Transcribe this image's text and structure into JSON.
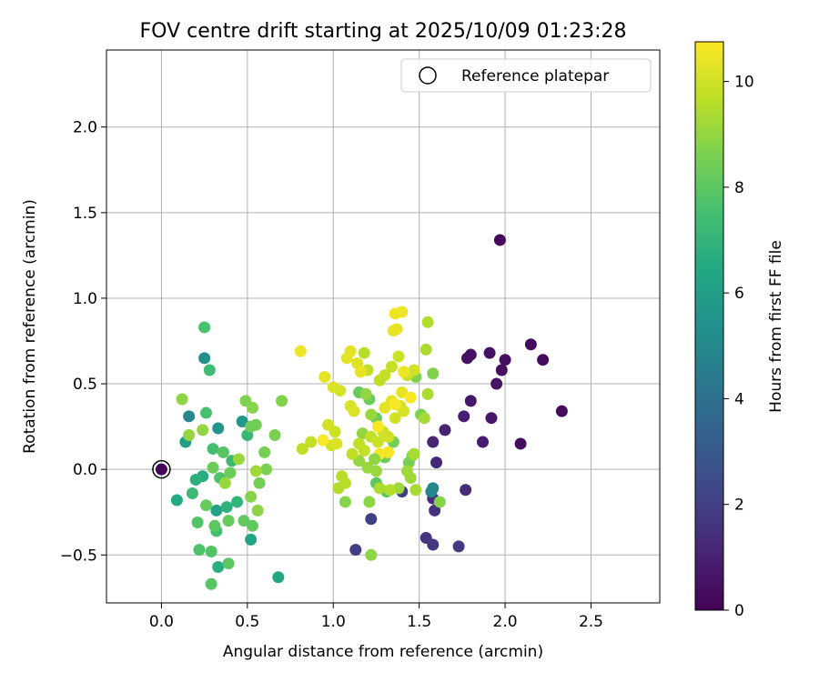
{
  "chart_data": {
    "type": "scatter",
    "title": "FOV centre drift starting at 2025/10/09 01:23:28",
    "xlabel": "Angular distance from reference (arcmin)",
    "ylabel": "Rotation from reference (arcmin)",
    "xlim": [
      -0.32,
      2.9
    ],
    "ylim": [
      -0.78,
      2.45
    ],
    "xticks": [
      0.0,
      0.5,
      1.0,
      1.5,
      2.0,
      2.5
    ],
    "xtick_labels": [
      "0.0",
      "0.5",
      "1.0",
      "1.5",
      "2.0",
      "2.5"
    ],
    "yticks": [
      -0.5,
      0.0,
      0.5,
      1.0,
      1.5,
      2.0
    ],
    "ytick_labels": [
      "−0.5",
      "0.0",
      "0.5",
      "1.0",
      "1.5",
      "2.0"
    ],
    "grid": true,
    "legend": {
      "position": "upper-right",
      "entries": [
        "Reference platepar"
      ]
    },
    "reference_point": {
      "x": 0.0,
      "y": 0.0,
      "label": "Reference platepar"
    },
    "colorbar": {
      "label": "Hours from first FF file",
      "range": [
        0,
        10.75
      ],
      "ticks": [
        0,
        2,
        4,
        6,
        8,
        10
      ],
      "tick_labels": [
        "0",
        "2",
        "4",
        "6",
        "8",
        "10"
      ],
      "colormap": "viridis"
    },
    "points": [
      [
        0.0,
        0.0,
        0.1
      ],
      [
        1.97,
        1.34,
        0.2
      ],
      [
        2.15,
        0.73,
        0.3
      ],
      [
        2.22,
        0.64,
        0.3
      ],
      [
        2.33,
        0.34,
        0.3
      ],
      [
        2.09,
        0.15,
        0.3
      ],
      [
        2.0,
        0.64,
        0.4
      ],
      [
        1.98,
        0.58,
        0.4
      ],
      [
        1.91,
        0.68,
        0.5
      ],
      [
        1.8,
        0.67,
        0.5
      ],
      [
        1.78,
        0.65,
        0.5
      ],
      [
        1.95,
        0.5,
        0.6
      ],
      [
        1.8,
        0.4,
        0.7
      ],
      [
        1.92,
        0.3,
        0.7
      ],
      [
        1.87,
        0.16,
        0.8
      ],
      [
        1.76,
        0.31,
        0.9
      ],
      [
        1.65,
        0.23,
        1.0
      ],
      [
        1.58,
        0.16,
        1.1
      ],
      [
        1.6,
        0.04,
        1.2
      ],
      [
        1.77,
        -0.12,
        1.3
      ],
      [
        1.58,
        -0.17,
        1.4
      ],
      [
        1.59,
        -0.24,
        1.5
      ],
      [
        1.54,
        -0.4,
        1.6
      ],
      [
        1.58,
        -0.44,
        1.7
      ],
      [
        1.73,
        -0.45,
        1.8
      ],
      [
        1.13,
        -0.47,
        1.9
      ],
      [
        1.22,
        -0.29,
        2.0
      ],
      [
        1.4,
        -0.13,
        2.1
      ],
      [
        1.58,
        -0.11,
        4.8
      ],
      [
        1.57,
        -0.13,
        4.9
      ],
      [
        0.16,
        0.31,
        5.0
      ],
      [
        0.25,
        0.65,
        5.3
      ],
      [
        0.33,
        0.24,
        5.5
      ],
      [
        0.47,
        0.28,
        5.7
      ],
      [
        0.14,
        0.16,
        6.0
      ],
      [
        0.32,
        -0.24,
        6.2
      ],
      [
        0.52,
        -0.41,
        6.3
      ],
      [
        0.68,
        -0.63,
        6.4
      ],
      [
        0.09,
        -0.18,
        6.5
      ],
      [
        0.24,
        -0.04,
        6.6
      ],
      [
        0.33,
        -0.57,
        6.7
      ],
      [
        0.2,
        -0.06,
        6.8
      ],
      [
        0.38,
        -0.22,
        6.9
      ],
      [
        0.44,
        -0.19,
        7.0
      ],
      [
        0.5,
        0.2,
        7.1
      ],
      [
        0.41,
        0.05,
        7.2
      ],
      [
        0.18,
        -0.14,
        7.3
      ],
      [
        0.28,
        0.58,
        7.4
      ],
      [
        0.3,
        0.12,
        7.5
      ],
      [
        0.32,
        -0.36,
        7.5
      ],
      [
        0.26,
        0.33,
        7.6
      ],
      [
        0.25,
        0.83,
        7.6
      ],
      [
        0.34,
        -0.05,
        7.7
      ],
      [
        0.22,
        -0.47,
        7.7
      ],
      [
        0.29,
        -0.48,
        7.8
      ],
      [
        0.21,
        -0.31,
        7.8
      ],
      [
        0.29,
        -0.67,
        7.9
      ],
      [
        0.36,
        0.1,
        7.9
      ],
      [
        0.31,
        -0.33,
        8.0
      ],
      [
        0.39,
        -0.55,
        8.0
      ],
      [
        0.48,
        -0.3,
        8.1
      ],
      [
        0.53,
        -0.33,
        8.1
      ],
      [
        0.26,
        -0.21,
        8.2
      ],
      [
        0.39,
        -0.3,
        8.2
      ],
      [
        0.3,
        0.01,
        8.3
      ],
      [
        0.4,
        -0.02,
        8.3
      ],
      [
        0.52,
        0.25,
        8.4
      ],
      [
        0.55,
        0.26,
        8.4
      ],
      [
        0.57,
        -0.08,
        8.5
      ],
      [
        0.6,
        0.1,
        8.5
      ],
      [
        0.61,
        0.0,
        8.6
      ],
      [
        0.66,
        0.2,
        8.6
      ],
      [
        0.7,
        0.4,
        8.7
      ],
      [
        0.49,
        0.4,
        8.7
      ],
      [
        0.53,
        0.36,
        8.8
      ],
      [
        0.52,
        -0.16,
        8.8
      ],
      [
        0.56,
        -0.24,
        8.9
      ],
      [
        0.12,
        0.41,
        8.9
      ],
      [
        0.16,
        0.2,
        9.0
      ],
      [
        0.24,
        0.23,
        9.0
      ],
      [
        0.37,
        -0.08,
        9.1
      ],
      [
        0.45,
        0.06,
        9.1
      ],
      [
        0.55,
        -0.01,
        9.2
      ],
      [
        1.25,
        -0.08,
        8.0
      ],
      [
        1.31,
        -0.13,
        8.0
      ],
      [
        1.15,
        0.45,
        8.2
      ],
      [
        1.21,
        0.41,
        8.3
      ],
      [
        1.25,
        0.3,
        8.3
      ],
      [
        1.3,
        0.07,
        8.4
      ],
      [
        1.35,
        0.16,
        8.5
      ],
      [
        1.44,
        0.04,
        8.5
      ],
      [
        1.46,
        0.08,
        8.6
      ],
      [
        1.51,
        0.32,
        8.6
      ],
      [
        1.48,
        0.54,
        8.7
      ],
      [
        1.58,
        0.56,
        8.7
      ],
      [
        1.62,
        -0.19,
        8.8
      ],
      [
        1.07,
        -0.19,
        8.8
      ],
      [
        1.21,
        -0.19,
        8.9
      ],
      [
        1.22,
        -0.5,
        8.9
      ],
      [
        1.15,
        0.05,
        9.0
      ],
      [
        1.17,
        0.21,
        9.0
      ],
      [
        1.2,
        0.01,
        9.1
      ],
      [
        1.25,
        -0.01,
        9.1
      ],
      [
        1.38,
        -0.11,
        9.2
      ],
      [
        1.43,
        -0.01,
        9.2
      ],
      [
        1.48,
        -0.12,
        9.3
      ],
      [
        1.53,
        0.3,
        9.3
      ],
      [
        1.55,
        0.44,
        9.4
      ],
      [
        1.54,
        0.7,
        9.4
      ],
      [
        1.55,
        0.86,
        9.5
      ],
      [
        1.03,
        -0.11,
        9.5
      ],
      [
        1.07,
        -0.08,
        9.6
      ],
      [
        1.05,
        -0.04,
        9.6
      ],
      [
        1.11,
        0.09,
        9.7
      ],
      [
        1.15,
        0.15,
        9.7
      ],
      [
        1.18,
        0.11,
        9.8
      ],
      [
        1.22,
        0.19,
        9.8
      ],
      [
        1.26,
        0.16,
        9.9
      ],
      [
        1.29,
        0.22,
        9.9
      ],
      [
        1.32,
        0.19,
        10.0
      ],
      [
        1.36,
        0.3,
        10.0
      ],
      [
        1.39,
        0.37,
        10.1
      ],
      [
        1.41,
        0.34,
        10.1
      ],
      [
        1.18,
        0.68,
        9.6
      ],
      [
        1.2,
        0.58,
        9.7
      ],
      [
        1.27,
        0.52,
        9.7
      ],
      [
        1.3,
        0.55,
        9.8
      ],
      [
        1.34,
        0.6,
        9.8
      ],
      [
        1.38,
        0.66,
        9.9
      ],
      [
        1.43,
        0.55,
        9.9
      ],
      [
        1.47,
        0.58,
        10.0
      ],
      [
        1.1,
        0.37,
        10.1
      ],
      [
        1.12,
        0.34,
        10.2
      ],
      [
        1.14,
        0.62,
        10.2
      ],
      [
        1.08,
        0.65,
        10.3
      ],
      [
        1.1,
        0.69,
        10.3
      ],
      [
        1.16,
        0.57,
        10.4
      ],
      [
        1.35,
        0.81,
        10.4
      ],
      [
        1.37,
        0.82,
        10.4
      ],
      [
        1.36,
        0.91,
        10.5
      ],
      [
        1.4,
        0.92,
        10.5
      ],
      [
        0.81,
        0.69,
        10.5
      ],
      [
        0.95,
        0.54,
        10.3
      ],
      [
        1.0,
        0.48,
        10.2
      ],
      [
        1.04,
        0.46,
        10.1
      ],
      [
        0.97,
        0.26,
        10.0
      ],
      [
        1.01,
        0.22,
        9.9
      ],
      [
        0.87,
        0.16,
        9.8
      ],
      [
        0.82,
        0.12,
        9.7
      ],
      [
        0.99,
        0.14,
        10.0
      ],
      [
        1.02,
        0.15,
        10.2
      ],
      [
        1.3,
        0.36,
        10.3
      ],
      [
        1.34,
        0.4,
        10.4
      ],
      [
        1.4,
        0.45,
        10.4
      ],
      [
        1.41,
        0.57,
        10.5
      ],
      [
        1.27,
        0.09,
        10.6
      ],
      [
        1.32,
        0.1,
        10.6
      ],
      [
        1.26,
        0.25,
        10.7
      ],
      [
        1.36,
        0.38,
        10.7
      ],
      [
        1.45,
        0.42,
        10.7
      ],
      [
        0.94,
        0.17,
        10.7
      ],
      [
        1.47,
        0.09,
        9.3
      ],
      [
        1.45,
        -0.05,
        9.2
      ],
      [
        1.27,
        -0.11,
        9.4
      ],
      [
        1.33,
        -0.12,
        9.5
      ],
      [
        1.19,
        0.44,
        9.0
      ],
      [
        1.22,
        0.32,
        9.1
      ],
      [
        1.24,
        0.06,
        8.9
      ]
    ]
  }
}
